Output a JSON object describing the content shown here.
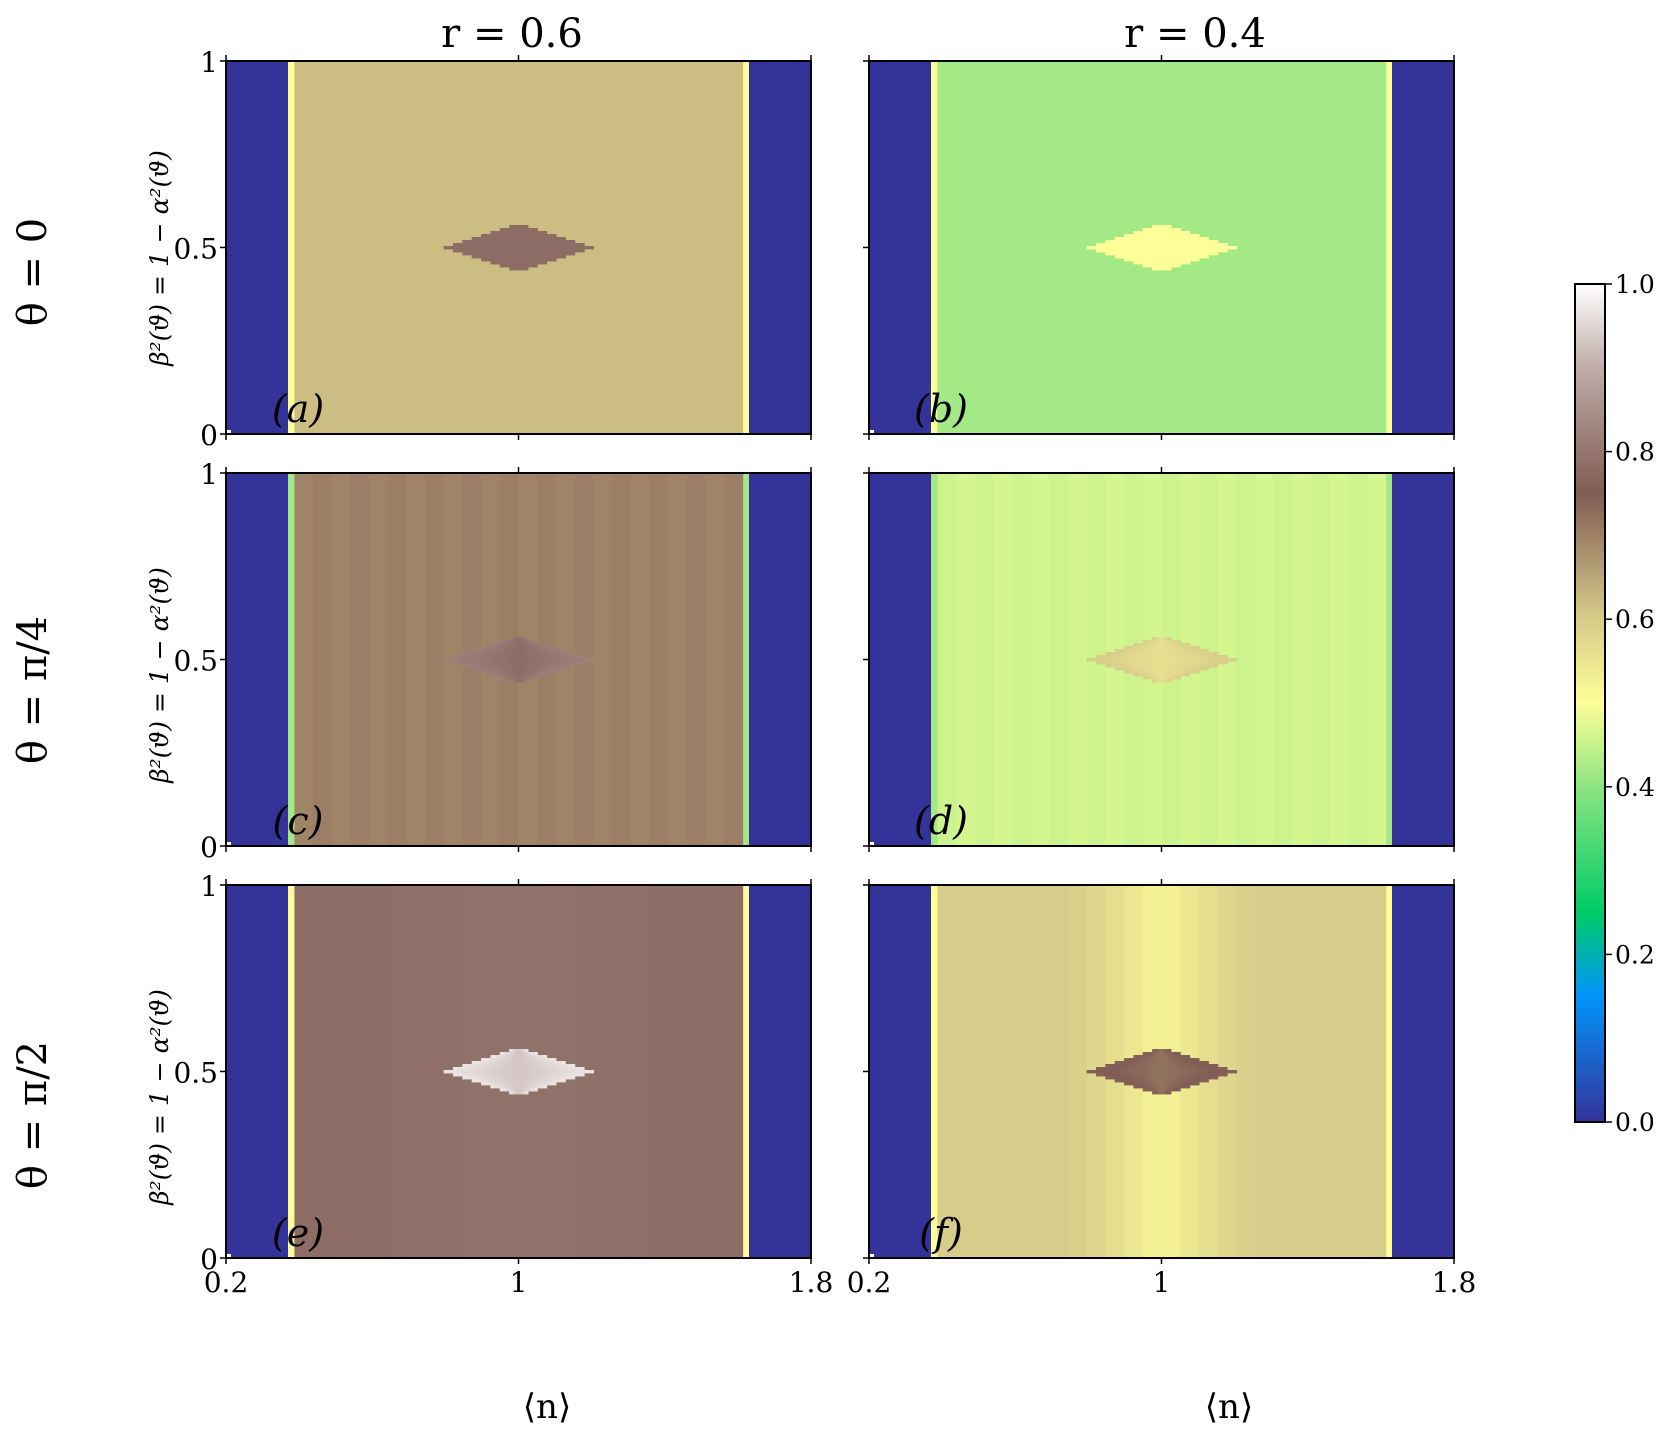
{
  "figure": {
    "column_titles": [
      "r = 0.6",
      "r = 0.4"
    ],
    "row_titles": [
      "θ = 0",
      "θ = π/4",
      "θ = π/2"
    ],
    "ylabel": "β²(ϑ) = 1 − α²(ϑ)",
    "xlabel": "⟨n⟩",
    "x_tick_labels": [
      "0.2",
      "1",
      "1.8"
    ],
    "y_tick_labels": [
      "0",
      "0.5",
      "1"
    ],
    "colorbar_tick_labels": [
      "0.0",
      "0.2",
      "0.4",
      "0.6",
      "0.8",
      "1.0"
    ]
  },
  "colors": {
    "dark_blue": "#333399",
    "light_yellow": "#f5f58f",
    "green": "#88e47e",
    "yellow_green": "#bcf08a",
    "khaki": "#d7cd88",
    "tan": "#ad9670",
    "brown": "#84625a",
    "pale": "#dccdc9"
  },
  "chart_data": [
    {
      "type": "heatmap",
      "panel_label": "(a)",
      "x_range": [
        0.2,
        1.8
      ],
      "y_range": [
        0,
        1
      ],
      "colorbar": {
        "range": [
          0,
          1
        ],
        "colormap": "terrain"
      },
      "regions": {
        "outer": 0.0,
        "edge_band": 0.5,
        "background": 0.62,
        "center_diamond": 0.78
      },
      "background_variation": "uniform"
    },
    {
      "type": "heatmap",
      "panel_label": "(b)",
      "x_range": [
        0.2,
        1.8
      ],
      "y_range": [
        0,
        1
      ],
      "colorbar": {
        "range": [
          0,
          1
        ],
        "colormap": "terrain"
      },
      "regions": {
        "outer": 0.0,
        "edge_band": 0.5,
        "background": 0.42,
        "center_diamond": 0.5
      },
      "background_variation": "uniform"
    },
    {
      "type": "heatmap",
      "panel_label": "(c)",
      "x_range": [
        0.2,
        1.8
      ],
      "y_range": [
        0,
        1
      ],
      "colorbar": {
        "range": [
          0,
          1
        ],
        "colormap": "terrain"
      },
      "regions": {
        "outer": 0.0,
        "edge_band": 0.42,
        "background": 0.7,
        "center_diamond": 0.82
      },
      "background_variation": "faint vertical stripes"
    },
    {
      "type": "heatmap",
      "panel_label": "(d)",
      "x_range": [
        0.2,
        1.8
      ],
      "y_range": [
        0,
        1
      ],
      "colorbar": {
        "range": [
          0,
          1
        ],
        "colormap": "terrain"
      },
      "regions": {
        "outer": 0.0,
        "edge_band": 0.42,
        "background": 0.46,
        "center_diamond": 0.6
      },
      "background_variation": "faint vertical stripes"
    },
    {
      "type": "heatmap",
      "panel_label": "(e)",
      "x_range": [
        0.2,
        1.8
      ],
      "y_range": [
        0,
        1
      ],
      "colorbar": {
        "range": [
          0,
          1
        ],
        "colormap": "terrain"
      },
      "regions": {
        "outer": 0.0,
        "edge_band": 0.5,
        "background": 0.78,
        "center_diamond": 0.93
      },
      "background_variation": "slightly darker near n = 1"
    },
    {
      "type": "heatmap",
      "panel_label": "(f)",
      "x_range": [
        0.2,
        1.8
      ],
      "y_range": [
        0,
        1
      ],
      "colorbar": {
        "range": [
          0,
          1
        ],
        "colormap": "terrain"
      },
      "regions": {
        "outer": 0.0,
        "edge_band": 0.5,
        "background": 0.6,
        "center_diamond": 0.76
      },
      "background_variation": "lighter band near n = 1"
    }
  ]
}
